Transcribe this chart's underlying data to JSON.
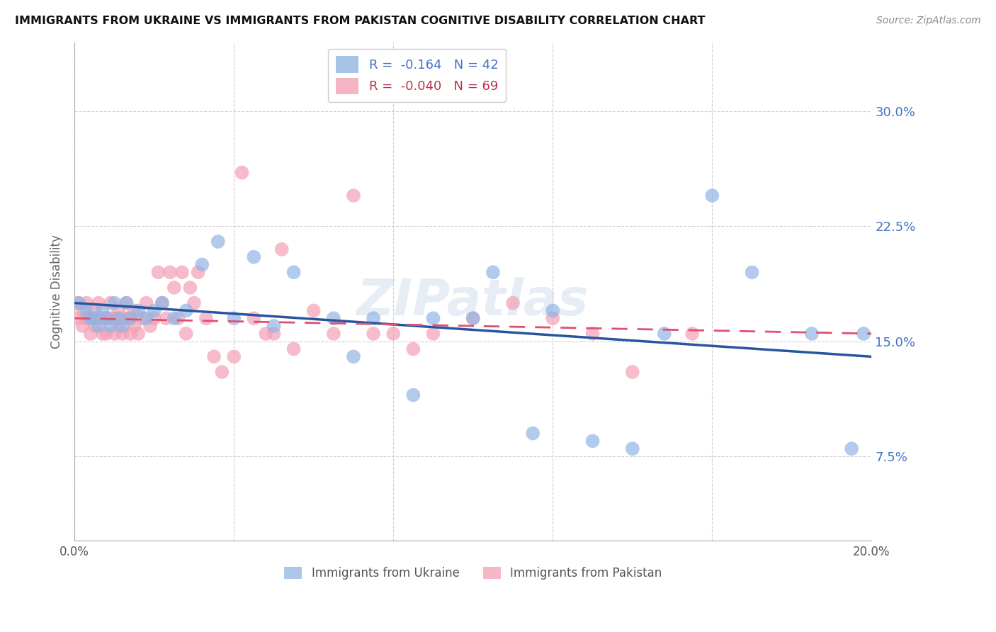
{
  "title": "IMMIGRANTS FROM UKRAINE VS IMMIGRANTS FROM PAKISTAN COGNITIVE DISABILITY CORRELATION CHART",
  "source": "Source: ZipAtlas.com",
  "ylabel": "Cognitive Disability",
  "yticks": [
    0.075,
    0.15,
    0.225,
    0.3
  ],
  "ytick_labels": [
    "7.5%",
    "15.0%",
    "22.5%",
    "30.0%"
  ],
  "xlim": [
    0.0,
    0.2
  ],
  "ylim": [
    0.02,
    0.345
  ],
  "ukraine_color": "#92b4e3",
  "pakistan_color": "#f4a0b5",
  "ukraine_R": "-0.164",
  "ukraine_N": "42",
  "pakistan_R": "-0.040",
  "pakistan_N": "69",
  "ukraine_x": [
    0.001,
    0.003,
    0.004,
    0.005,
    0.006,
    0.007,
    0.008,
    0.009,
    0.01,
    0.011,
    0.012,
    0.013,
    0.014,
    0.016,
    0.018,
    0.02,
    0.022,
    0.025,
    0.028,
    0.032,
    0.036,
    0.04,
    0.045,
    0.05,
    0.055,
    0.065,
    0.07,
    0.075,
    0.085,
    0.09,
    0.1,
    0.105,
    0.115,
    0.12,
    0.13,
    0.14,
    0.148,
    0.16,
    0.17,
    0.185,
    0.195,
    0.198
  ],
  "ukraine_y": [
    0.175,
    0.17,
    0.165,
    0.165,
    0.16,
    0.17,
    0.165,
    0.16,
    0.175,
    0.165,
    0.16,
    0.175,
    0.165,
    0.17,
    0.165,
    0.17,
    0.175,
    0.165,
    0.17,
    0.2,
    0.215,
    0.165,
    0.205,
    0.16,
    0.195,
    0.165,
    0.14,
    0.165,
    0.115,
    0.165,
    0.165,
    0.195,
    0.09,
    0.17,
    0.085,
    0.08,
    0.155,
    0.245,
    0.195,
    0.155,
    0.08,
    0.155
  ],
  "pakistan_x": [
    0.001,
    0.001,
    0.002,
    0.002,
    0.003,
    0.003,
    0.004,
    0.004,
    0.005,
    0.005,
    0.006,
    0.006,
    0.007,
    0.007,
    0.008,
    0.008,
    0.009,
    0.009,
    0.01,
    0.01,
    0.011,
    0.011,
    0.012,
    0.012,
    0.013,
    0.013,
    0.014,
    0.014,
    0.015,
    0.015,
    0.016,
    0.017,
    0.018,
    0.019,
    0.02,
    0.021,
    0.022,
    0.023,
    0.024,
    0.025,
    0.026,
    0.027,
    0.028,
    0.029,
    0.03,
    0.031,
    0.033,
    0.035,
    0.037,
    0.04,
    0.042,
    0.045,
    0.048,
    0.05,
    0.052,
    0.055,
    0.06,
    0.065,
    0.07,
    0.075,
    0.08,
    0.085,
    0.09,
    0.1,
    0.11,
    0.12,
    0.13,
    0.14,
    0.155
  ],
  "pakistan_y": [
    0.175,
    0.165,
    0.17,
    0.16,
    0.175,
    0.165,
    0.165,
    0.155,
    0.17,
    0.16,
    0.175,
    0.165,
    0.165,
    0.155,
    0.165,
    0.155,
    0.175,
    0.165,
    0.165,
    0.155,
    0.17,
    0.16,
    0.165,
    0.155,
    0.175,
    0.165,
    0.165,
    0.155,
    0.17,
    0.16,
    0.155,
    0.165,
    0.175,
    0.16,
    0.165,
    0.195,
    0.175,
    0.165,
    0.195,
    0.185,
    0.165,
    0.195,
    0.155,
    0.185,
    0.175,
    0.195,
    0.165,
    0.14,
    0.13,
    0.14,
    0.26,
    0.165,
    0.155,
    0.155,
    0.21,
    0.145,
    0.17,
    0.155,
    0.245,
    0.155,
    0.155,
    0.145,
    0.155,
    0.165,
    0.175,
    0.165,
    0.155,
    0.13,
    0.155
  ],
  "watermark": "ZIPatlas"
}
